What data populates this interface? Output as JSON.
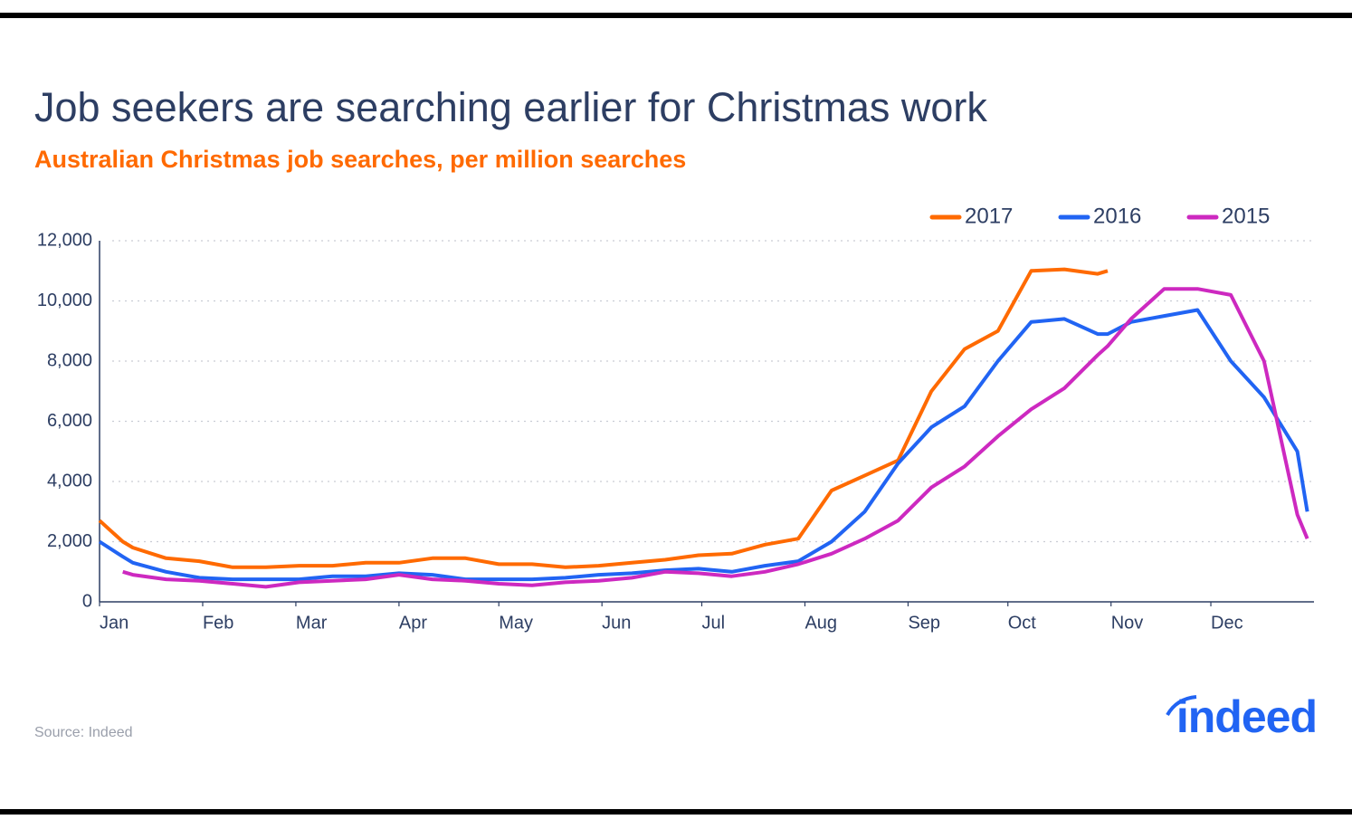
{
  "chart_data": {
    "type": "line",
    "title": "Job seekers are searching earlier for Christmas work",
    "subtitle": "Australian Christmas job searches, per million searches",
    "source": "Source: Indeed",
    "logo": "indeed",
    "x": [
      0,
      7,
      10,
      20,
      30,
      40,
      50,
      60,
      70,
      80,
      90,
      100,
      110,
      120,
      130,
      140,
      150,
      160,
      170,
      180,
      190,
      200,
      210,
      220,
      230,
      240,
      250,
      260,
      270,
      280,
      290,
      300,
      303,
      310,
      320,
      330,
      340,
      350,
      360,
      363
    ],
    "xlim": [
      0,
      365
    ],
    "xticks": [
      {
        "value": 0,
        "label": "Jan"
      },
      {
        "value": 31,
        "label": "Feb"
      },
      {
        "value": 59,
        "label": "Mar"
      },
      {
        "value": 90,
        "label": "Apr"
      },
      {
        "value": 120,
        "label": "May"
      },
      {
        "value": 151,
        "label": "Jun"
      },
      {
        "value": 181,
        "label": "Jul"
      },
      {
        "value": 212,
        "label": "Aug"
      },
      {
        "value": 243,
        "label": "Sep"
      },
      {
        "value": 273,
        "label": "Oct"
      },
      {
        "value": 304,
        "label": "Nov"
      },
      {
        "value": 334,
        "label": "Dec"
      }
    ],
    "ylim": [
      0,
      12000
    ],
    "yticks": [
      0,
      {
        "value": 2000,
        "label": "2,000"
      },
      {
        "value": 4000,
        "label": "4,000"
      },
      {
        "value": 6000,
        "label": "6,000"
      },
      {
        "value": 8000,
        "label": "8,000"
      },
      {
        "value": 10000,
        "label": "10,000"
      },
      {
        "value": 12000,
        "label": "12,000"
      }
    ],
    "grid": true,
    "legend": "top-right",
    "series": [
      {
        "name": "2017",
        "color": "#ff6a00",
        "values": [
          2700,
          2000,
          1800,
          1450,
          1350,
          1150,
          1150,
          1200,
          1200,
          1300,
          1300,
          1450,
          1450,
          1250,
          1250,
          1150,
          1200,
          1300,
          1400,
          1550,
          1600,
          1900,
          2100,
          3700,
          4200,
          4700,
          7000,
          8400,
          9000,
          11000,
          11050,
          10900,
          11000,
          null,
          null,
          null,
          null,
          null,
          null,
          null
        ]
      },
      {
        "name": "2016",
        "color": "#2164f3",
        "values": [
          2000,
          1500,
          1300,
          1000,
          800,
          750,
          750,
          750,
          850,
          850,
          950,
          900,
          750,
          750,
          750,
          800,
          900,
          950,
          1050,
          1100,
          1000,
          1200,
          1350,
          2000,
          3000,
          4600,
          5800,
          6500,
          8000,
          9300,
          9400,
          8900,
          8900,
          9300,
          9500,
          9700,
          8000,
          6800,
          5000,
          3000
        ]
      },
      {
        "name": "2015",
        "color": "#cd29c0",
        "values": [
          null,
          1000,
          900,
          750,
          700,
          600,
          500,
          650,
          700,
          750,
          900,
          750,
          700,
          600,
          550,
          650,
          700,
          800,
          1000,
          950,
          850,
          1000,
          1250,
          1600,
          2100,
          2700,
          3800,
          4500,
          5500,
          6400,
          7100,
          8200,
          8500,
          9400,
          10400,
          10400,
          10200,
          8000,
          2900,
          2100
        ]
      }
    ]
  }
}
